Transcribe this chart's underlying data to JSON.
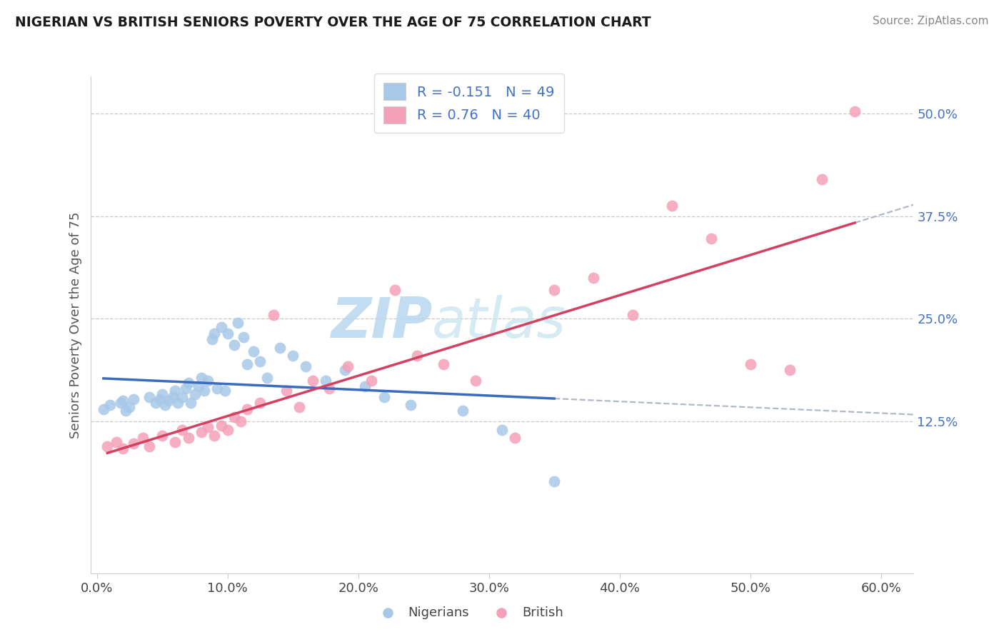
{
  "title": "NIGERIAN VS BRITISH SENIORS POVERTY OVER THE AGE OF 75 CORRELATION CHART",
  "source": "Source: ZipAtlas.com",
  "ylabel": "Seniors Poverty Over the Age of 75",
  "xlim": [
    -0.005,
    0.625
  ],
  "ylim": [
    -0.06,
    0.545
  ],
  "ytick_positions": [
    0.125,
    0.25,
    0.375,
    0.5
  ],
  "ytick_labels": [
    "12.5%",
    "25.0%",
    "37.5%",
    "50.0%"
  ],
  "xtick_positions": [
    0.0,
    0.1,
    0.2,
    0.3,
    0.4,
    0.5,
    0.6
  ],
  "xtick_labels": [
    "0.0%",
    "10.0%",
    "20.0%",
    "30.0%",
    "40.0%",
    "50.0%",
    "60.0%"
  ],
  "nigerian_R": -0.151,
  "nigerian_N": 49,
  "british_R": 0.76,
  "british_N": 40,
  "nigerian_color": "#a8c8e8",
  "british_color": "#f4a0b8",
  "nigerian_line_color": "#3a6bbf",
  "british_line_color": "#d44060",
  "dash_color": "#b0b8c8",
  "nigerian_x": [
    0.005,
    0.01,
    0.018,
    0.02,
    0.022,
    0.025,
    0.028,
    0.04,
    0.045,
    0.048,
    0.05,
    0.052,
    0.055,
    0.058,
    0.06,
    0.062,
    0.065,
    0.068,
    0.07,
    0.072,
    0.075,
    0.078,
    0.08,
    0.082,
    0.085,
    0.088,
    0.09,
    0.092,
    0.095,
    0.098,
    0.1,
    0.105,
    0.108,
    0.112,
    0.115,
    0.12,
    0.125,
    0.13,
    0.14,
    0.15,
    0.16,
    0.175,
    0.19,
    0.205,
    0.22,
    0.24,
    0.28,
    0.31,
    0.35
  ],
  "nigerian_y": [
    0.14,
    0.145,
    0.148,
    0.15,
    0.138,
    0.142,
    0.152,
    0.155,
    0.148,
    0.152,
    0.158,
    0.145,
    0.15,
    0.155,
    0.162,
    0.148,
    0.155,
    0.165,
    0.172,
    0.148,
    0.158,
    0.168,
    0.178,
    0.162,
    0.175,
    0.225,
    0.232,
    0.165,
    0.24,
    0.162,
    0.232,
    0.218,
    0.245,
    0.228,
    0.195,
    0.21,
    0.198,
    0.178,
    0.215,
    0.205,
    0.192,
    0.175,
    0.188,
    0.168,
    0.155,
    0.145,
    0.138,
    0.115,
    0.052
  ],
  "british_x": [
    0.008,
    0.015,
    0.02,
    0.028,
    0.035,
    0.04,
    0.05,
    0.06,
    0.065,
    0.07,
    0.08,
    0.085,
    0.09,
    0.095,
    0.1,
    0.105,
    0.11,
    0.115,
    0.125,
    0.135,
    0.145,
    0.155,
    0.165,
    0.178,
    0.192,
    0.21,
    0.228,
    0.245,
    0.265,
    0.29,
    0.32,
    0.35,
    0.38,
    0.41,
    0.44,
    0.47,
    0.5,
    0.53,
    0.555,
    0.58
  ],
  "british_y": [
    0.095,
    0.1,
    0.092,
    0.098,
    0.105,
    0.095,
    0.108,
    0.1,
    0.115,
    0.105,
    0.112,
    0.118,
    0.108,
    0.12,
    0.115,
    0.13,
    0.125,
    0.14,
    0.148,
    0.255,
    0.162,
    0.142,
    0.175,
    0.165,
    0.192,
    0.175,
    0.285,
    0.205,
    0.195,
    0.175,
    0.105,
    0.285,
    0.3,
    0.255,
    0.388,
    0.348,
    0.195,
    0.188,
    0.42,
    0.502
  ]
}
